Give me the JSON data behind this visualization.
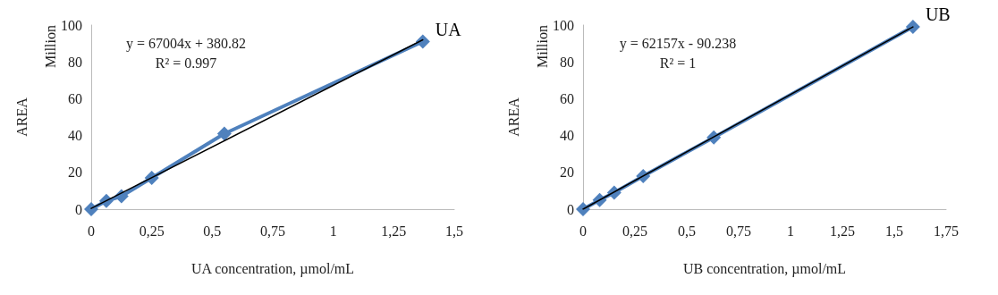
{
  "chart_data": [
    {
      "type": "line",
      "xlabel": "UA concentration, µmol/mL",
      "ylabel": "AREA",
      "annotations": [
        "Million",
        "y = 67004x + 380.82",
        "R² = 0.997"
      ],
      "xlim": [
        0,
        1.5
      ],
      "xticks": [
        {
          "value": 0,
          "label": "0"
        },
        {
          "value": 0.25,
          "label": "0,25"
        },
        {
          "value": 0.5,
          "label": "0,5"
        },
        {
          "value": 0.75,
          "label": "0,75"
        },
        {
          "value": 1,
          "label": "1"
        },
        {
          "value": 1.25,
          "label": "1,25"
        },
        {
          "value": 1.5,
          "label": "1,5"
        }
      ],
      "ylim": [
        0,
        100
      ],
      "yticks": [
        0,
        20,
        40,
        60,
        80,
        100
      ],
      "grid": false,
      "legend": false,
      "series": [
        {
          "name": "UA",
          "color": "#4f81bd",
          "marker": "diamond",
          "line_style": "solid",
          "x": [
            0,
            0.0625,
            0.125,
            0.25,
            0.55,
            1.37
          ],
          "values": [
            0,
            4.5,
            7,
            17,
            41,
            91
          ]
        },
        {
          "color": "#000000",
          "marker": "none",
          "line_style": "solid",
          "x": [
            0,
            1.37
          ],
          "values": [
            0.4,
            92
          ]
        }
      ]
    },
    {
      "type": "line",
      "xlabel": "UB concentration, µmol/mL",
      "ylabel": "AREA",
      "annotations": [
        "Million",
        "y = 62157x - 90.238",
        "R² = 1"
      ],
      "xlim": [
        0,
        1.75
      ],
      "xticks": [
        {
          "value": 0,
          "label": "0"
        },
        {
          "value": 0.25,
          "label": "0,25"
        },
        {
          "value": 0.5,
          "label": "0,5"
        },
        {
          "value": 0.75,
          "label": "0,75"
        },
        {
          "value": 1,
          "label": "1"
        },
        {
          "value": 1.25,
          "label": "1,25"
        },
        {
          "value": 1.5,
          "label": "1,5"
        },
        {
          "value": 1.75,
          "label": "1,75"
        }
      ],
      "ylim": [
        0,
        100
      ],
      "yticks": [
        0,
        20,
        40,
        60,
        80,
        100
      ],
      "grid": false,
      "legend": false,
      "series": [
        {
          "name": "UB",
          "color": "#4f81bd",
          "marker": "diamond",
          "line_style": "solid",
          "x": [
            0,
            0.08,
            0.15,
            0.29,
            0.63,
            1.59
          ],
          "values": [
            0,
            5,
            9,
            18,
            39,
            99
          ]
        },
        {
          "color": "#000000",
          "marker": "none",
          "line_style": "solid",
          "x": [
            0,
            1.59
          ],
          "values": [
            0,
            99
          ]
        }
      ]
    }
  ]
}
